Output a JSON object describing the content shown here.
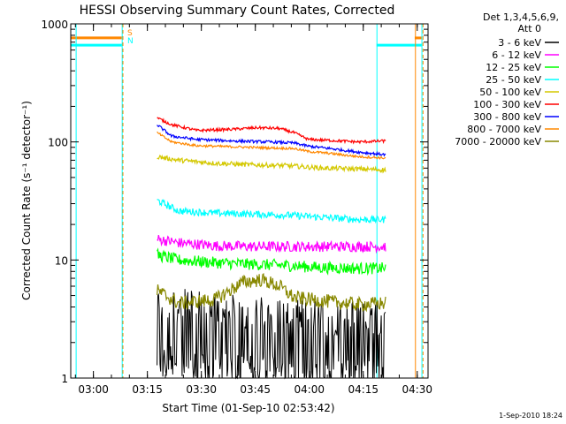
{
  "chart_data": {
    "type": "line",
    "title": "HESSI Observing Summary Count Rates, Corrected",
    "xlabel": "Start Time (01-Sep-10 02:53:42)",
    "ylabel": "Corrected Count Rate (s⁻¹ detector⁻¹)",
    "x_range": [
      "02:53:42",
      "04:33:00"
    ],
    "xlim_minutes_from_0253": [
      0.0,
      99.3
    ],
    "x_ticks": [
      {
        "label": "03:00",
        "minute": 6.3
      },
      {
        "label": "03:15",
        "minute": 21.3
      },
      {
        "label": "03:30",
        "minute": 36.3
      },
      {
        "label": "03:45",
        "minute": 51.3
      },
      {
        "label": "04:00",
        "minute": 66.3
      },
      {
        "label": "04:15",
        "minute": 81.3
      },
      {
        "label": "04:30",
        "minute": 96.3
      }
    ],
    "y_scale": "log",
    "ylim": [
      1,
      1000
    ],
    "y_ticks": [
      {
        "label": "1",
        "value": 1
      },
      {
        "label": "10",
        "value": 10
      },
      {
        "label": "100",
        "value": 100
      },
      {
        "label": "1000",
        "value": 1000
      }
    ],
    "legend": {
      "position": "right",
      "header": [
        "Det 1,3,4,5,6,9,",
        "Att 0"
      ]
    },
    "series": [
      {
        "name": "3 - 6 keV",
        "color": "#000000",
        "start": 24,
        "end": 87.5,
        "points": [
          [
            24,
            2.5
          ],
          [
            30,
            2.3
          ],
          [
            40,
            2.1
          ],
          [
            50,
            2.0
          ],
          [
            60,
            1.9
          ],
          [
            70,
            1.8
          ],
          [
            80,
            1.8
          ],
          [
            87.5,
            1.8
          ]
        ],
        "noise": 0.22
      },
      {
        "name": "6 - 12 keV",
        "color": "#ff00ff",
        "start": 24,
        "end": 87.5,
        "points": [
          [
            24,
            15
          ],
          [
            30,
            14
          ],
          [
            40,
            13.2
          ],
          [
            50,
            13
          ],
          [
            60,
            13
          ],
          [
            70,
            13
          ],
          [
            80,
            13
          ],
          [
            87.5,
            13
          ]
        ],
        "noise": 0.045
      },
      {
        "name": "12 - 25 keV",
        "color": "#00ff00",
        "start": 24,
        "end": 87.5,
        "points": [
          [
            24,
            11
          ],
          [
            30,
            10
          ],
          [
            40,
            9.5
          ],
          [
            50,
            9.2
          ],
          [
            60,
            9
          ],
          [
            70,
            8.6
          ],
          [
            80,
            8.5
          ],
          [
            87.5,
            8.5
          ]
        ],
        "noise": 0.05
      },
      {
        "name": "25 - 50 keV",
        "color": "#00ffff",
        "start": 24,
        "end": 87.5,
        "points": [
          [
            24,
            32
          ],
          [
            30,
            26
          ],
          [
            40,
            25
          ],
          [
            50,
            24.5
          ],
          [
            60,
            24
          ],
          [
            70,
            23
          ],
          [
            80,
            22
          ],
          [
            87.5,
            22
          ]
        ],
        "noise": 0.03
      },
      {
        "name": "50 - 100 keV",
        "color": "#d4c800",
        "start": 24,
        "end": 87.5,
        "points": [
          [
            24,
            75
          ],
          [
            30,
            70
          ],
          [
            40,
            66
          ],
          [
            50,
            64
          ],
          [
            60,
            63
          ],
          [
            70,
            60
          ],
          [
            80,
            59
          ],
          [
            87.5,
            58
          ]
        ],
        "noise": 0.02
      },
      {
        "name": "100 - 300 keV",
        "color": "#ff0000",
        "start": 24,
        "end": 87.5,
        "points": [
          [
            24,
            160
          ],
          [
            28,
            140
          ],
          [
            35,
            125
          ],
          [
            45,
            128
          ],
          [
            52,
            132
          ],
          [
            58,
            130
          ],
          [
            62,
            120
          ],
          [
            66,
            105
          ],
          [
            72,
            103
          ],
          [
            80,
            100
          ],
          [
            87.5,
            102
          ]
        ],
        "noise": 0.012
      },
      {
        "name": "300 - 800 keV",
        "color": "#0000ff",
        "start": 24,
        "end": 87.5,
        "points": [
          [
            24,
            140
          ],
          [
            28,
            112
          ],
          [
            35,
            105
          ],
          [
            45,
            102
          ],
          [
            55,
            100
          ],
          [
            62,
            98
          ],
          [
            66,
            92
          ],
          [
            72,
            88
          ],
          [
            80,
            82
          ],
          [
            87.5,
            78
          ]
        ],
        "noise": 0.012
      },
      {
        "name": "800 - 7000 keV",
        "color": "#ff8800",
        "start": 24,
        "end": 87.5,
        "points": [
          [
            24,
            120
          ],
          [
            28,
            100
          ],
          [
            35,
            93
          ],
          [
            45,
            91
          ],
          [
            55,
            89
          ],
          [
            62,
            88
          ],
          [
            66,
            83
          ],
          [
            72,
            80
          ],
          [
            80,
            75
          ],
          [
            87.5,
            73
          ]
        ],
        "noise": 0.01
      },
      {
        "name": "7000 - 20000 keV",
        "color": "#888800",
        "start": 24,
        "end": 87.5,
        "points": [
          [
            24,
            5.5
          ],
          [
            30,
            4.3
          ],
          [
            40,
            4.6
          ],
          [
            48,
            6.5
          ],
          [
            53,
            6.8
          ],
          [
            58,
            6.0
          ],
          [
            62,
            4.8
          ],
          [
            70,
            4.5
          ],
          [
            80,
            4.2
          ],
          [
            87.5,
            4.3
          ]
        ],
        "noise": 0.06
      }
    ],
    "annotations": {
      "saa_markers": [
        {
          "label": "S",
          "color": "#ff8800"
        },
        {
          "label": "N",
          "color": "#00ffff"
        }
      ],
      "flag_bands": [
        {
          "color": "#ff8800",
          "value": 760,
          "segments": [
            [
              0,
              14.2
            ],
            [
              95.6,
              97.5
            ]
          ]
        },
        {
          "color": "#00ffff",
          "value": 660,
          "segments": [
            [
              0,
              14.2
            ],
            [
              85,
              97.5
            ]
          ]
        }
      ],
      "vertical_lines": [
        {
          "minute": 1.5,
          "color": "#00ffff"
        },
        {
          "minute": 14.3,
          "color": "#00ffff"
        },
        {
          "minute": 14.5,
          "color": "#ff8800",
          "dashed": true
        },
        {
          "minute": 85.1,
          "color": "#00ffff"
        },
        {
          "minute": 95.8,
          "color": "#ff8800"
        },
        {
          "minute": 97.6,
          "color": "#00ffff"
        },
        {
          "minute": 97.9,
          "color": "#ff8800",
          "dashed": true
        }
      ]
    }
  },
  "footer": {
    "timestamp": "1-Sep-2010 18:24"
  }
}
